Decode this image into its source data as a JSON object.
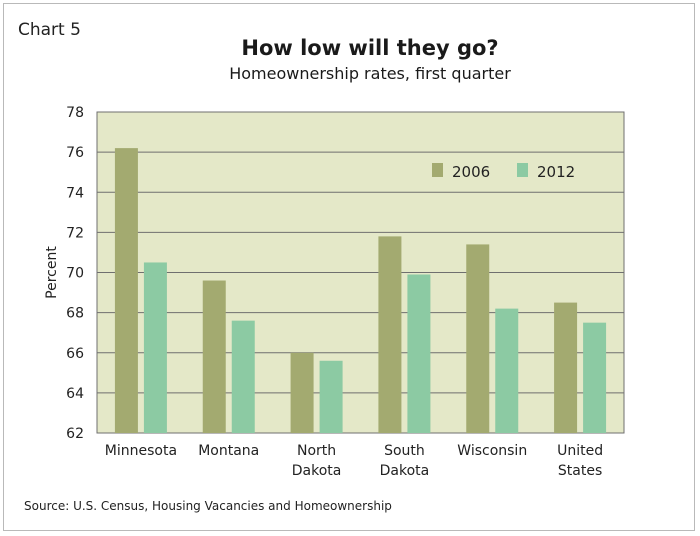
{
  "chart_label": "Chart 5",
  "source": "Source: U.S. Census, Housing Vacancies and Homeownership",
  "colors": {
    "plot_background": "#e4e8c8",
    "gridline": "#6f6f6f",
    "series_2006": "#a3aa70",
    "series_2012": "#8ccaa3"
  },
  "chart_data": {
    "type": "bar",
    "title": "How low will they go?",
    "subtitle": "Homeownership rates, first quarter",
    "xlabel": "",
    "ylabel": "Percent",
    "ylim": [
      62,
      78
    ],
    "yticks": [
      62,
      64,
      66,
      68,
      70,
      72,
      74,
      76,
      78
    ],
    "grid": true,
    "legend_position": "top-right",
    "categories": [
      [
        "Minnesota"
      ],
      [
        "Montana"
      ],
      [
        "North",
        "Dakota"
      ],
      [
        "South",
        "Dakota"
      ],
      [
        "Wisconsin"
      ],
      [
        "United",
        "States"
      ]
    ],
    "series": [
      {
        "name": "2006",
        "color": "#a3aa70",
        "values": [
          76.2,
          69.6,
          66.0,
          71.8,
          71.4,
          68.5
        ]
      },
      {
        "name": "2012",
        "color": "#8ccaa3",
        "values": [
          70.5,
          67.6,
          65.6,
          69.9,
          68.2,
          67.5
        ]
      }
    ]
  }
}
